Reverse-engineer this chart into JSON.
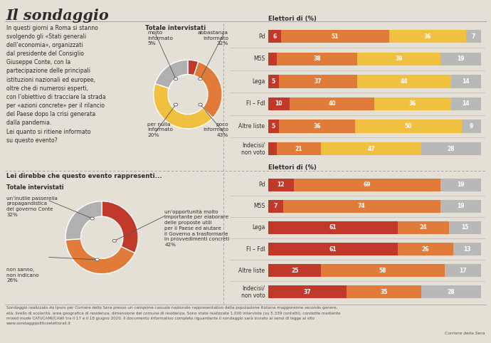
{
  "title": "Il sondaggio",
  "bg_color": "#e5e0d5",
  "text_color": "#2d2d2d",
  "left_text_top": "In questi giorni a Roma si stanno\nsvolgendo gli «Stati generali\ndell’economia», organizzati\ndal presidente del Consiglio\nGiuseppe Conte, con la\npartecipazione delle principali\nistituzioni nazionali ed europee,\noltre che di numerosi esperti,\ncon l’obiettivo di tracciare la strada\nper «azioni concrete» per il rilancio\ndel Paese dopo la crisi generata\ndalla pandemia.\nLei quanto si ritiene informato\nsu questo evento?",
  "donut1_title": "Totale intervistati",
  "donut1_values": [
    5,
    32,
    43,
    20
  ],
  "donut1_colors": [
    "#c0392b",
    "#e07b39",
    "#f0c040",
    "#b0b0b0"
  ],
  "donut2_question": "Lei direbbe che questo evento rappresenti...",
  "donut2_title": "Totale intervistati",
  "donut2_values": [
    32,
    42,
    26
  ],
  "donut2_colors": [
    "#c0392b",
    "#e07b39",
    "#b0b0b0"
  ],
  "bars1_title": "Elettori di (%)",
  "bars1_categories": [
    "Pd",
    "M5S",
    "Lega",
    "FI – FdI",
    "Altre liste",
    "Indecisi/\nnon voto"
  ],
  "bars1_data": [
    [
      6,
      51,
      36,
      7
    ],
    [
      4,
      38,
      39,
      19
    ],
    [
      5,
      37,
      44,
      14
    ],
    [
      10,
      40,
      36,
      14
    ],
    [
      5,
      36,
      50,
      9
    ],
    [
      4,
      21,
      47,
      28
    ]
  ],
  "bars1_colors": [
    "#c0392b",
    "#e07b39",
    "#f0c040",
    "#b8b8b8"
  ],
  "bars2_title": "Elettori di (%)",
  "bars2_categories": [
    "Pd",
    "M5S",
    "Lega",
    "FI – FdI",
    "Altre liste",
    "Indecisi/\nnon voto"
  ],
  "bars2_data": [
    [
      12,
      69,
      19
    ],
    [
      7,
      74,
      19
    ],
    [
      61,
      24,
      15
    ],
    [
      61,
      26,
      13
    ],
    [
      25,
      58,
      17
    ],
    [
      37,
      35,
      28
    ]
  ],
  "bars2_colors": [
    "#c0392b",
    "#e07b39",
    "#b8b8b8"
  ],
  "footer": "Sondaggio realizzato da Ipsos per Corriere della Sera presso un campione casuale nazionale rappresentativo della popolazione italiana maggiorenne secondo genere,\netà, livello di scolarità, area geografica di residenza, dimensione del comune di residenza. Sono state realizzate 1.000 interviste (su 5.339 contatti), condotte mediante\nmixed mode CATI/CAMI/CAWI tra il 17 e il 18 giugno 2020. Il documento informativo completo riguardante il sondaggio sarà inviato ai sensi di legge al sito\nwww.sondaggipoliticoelettorali.it",
  "footer_right": "Corriere della Sera"
}
